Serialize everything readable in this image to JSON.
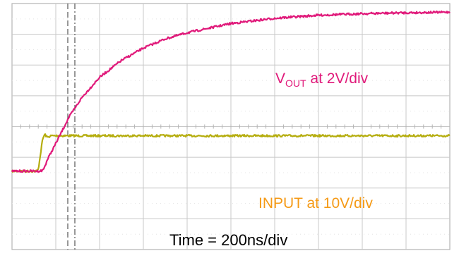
{
  "chart_data": {
    "type": "line",
    "title": "",
    "xlabel": "Time = 200ns/div",
    "ylabel": "",
    "x_divisions": 10,
    "y_divisions": 8,
    "grid": true,
    "series": [
      {
        "name": "VOUT at 2V/div",
        "color": "#e0197a",
        "x_unit": "div",
        "y_unit": "div",
        "x": [
          0.0,
          0.6,
          0.7,
          0.75,
          0.8,
          1.0,
          1.3,
          1.6,
          2.0,
          2.5,
          3.0,
          3.5,
          4.0,
          5.0,
          6.0,
          7.0,
          8.0,
          9.0,
          10.0
        ],
        "y": [
          -1.45,
          -1.45,
          -1.43,
          -1.3,
          -1.1,
          -0.55,
          0.3,
          0.95,
          1.6,
          2.15,
          2.55,
          2.85,
          3.05,
          3.35,
          3.52,
          3.62,
          3.67,
          3.7,
          3.72
        ]
      },
      {
        "name": "INPUT at 10V/div",
        "color": "#b5ad0e",
        "x_unit": "div",
        "y_unit": "div",
        "x": [
          0.0,
          0.55,
          0.6,
          0.65,
          0.7,
          0.75,
          0.8,
          0.9,
          1.2,
          2.0,
          4.0,
          6.0,
          8.0,
          10.0
        ],
        "y": [
          -1.45,
          -1.45,
          -1.4,
          -0.9,
          -0.4,
          -0.25,
          -0.35,
          -0.3,
          -0.3,
          -0.3,
          -0.3,
          -0.3,
          -0.3,
          -0.3
        ]
      }
    ],
    "annotations": {
      "vout_text": "V",
      "vout_sub": "OUT",
      "vout_rest": " at 2V/div",
      "input_text": "INPUT at 10V/div",
      "time_text": "Time = 200ns/div"
    }
  },
  "colors": {
    "background": "#ffffff",
    "grid": "#c8c8c8",
    "frame": "#b4b4b4",
    "cursor": "#555555"
  }
}
